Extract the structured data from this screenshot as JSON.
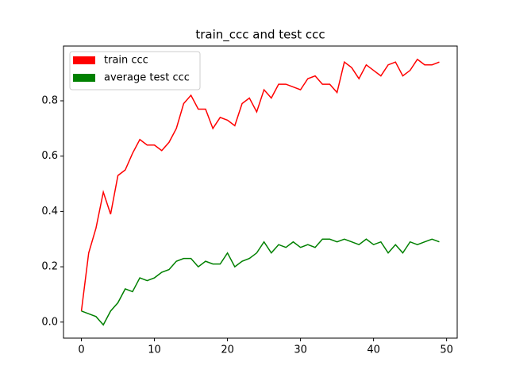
{
  "chart_data": {
    "type": "line",
    "title": "train_ccc and test ccc",
    "x": [
      0,
      1,
      2,
      3,
      4,
      5,
      6,
      7,
      8,
      9,
      10,
      11,
      12,
      13,
      14,
      15,
      16,
      17,
      18,
      19,
      20,
      21,
      22,
      23,
      24,
      25,
      26,
      27,
      28,
      29,
      30,
      31,
      32,
      33,
      34,
      35,
      36,
      37,
      38,
      39,
      40,
      41,
      42,
      43,
      44,
      45,
      46,
      47,
      48,
      49
    ],
    "series": [
      {
        "name": "train ccc",
        "color": "#ff0000",
        "values": [
          0.04,
          0.25,
          0.34,
          0.47,
          0.39,
          0.53,
          0.55,
          0.61,
          0.66,
          0.64,
          0.64,
          0.62,
          0.65,
          0.7,
          0.79,
          0.82,
          0.77,
          0.77,
          0.7,
          0.74,
          0.73,
          0.71,
          0.79,
          0.81,
          0.76,
          0.84,
          0.81,
          0.86,
          0.86,
          0.85,
          0.84,
          0.88,
          0.89,
          0.86,
          0.86,
          0.83,
          0.94,
          0.92,
          0.88,
          0.93,
          0.91,
          0.89,
          0.93,
          0.94,
          0.89,
          0.91,
          0.95,
          0.93,
          0.93,
          0.94
        ]
      },
      {
        "name": "average test ccc",
        "color": "#008000",
        "values": [
          0.04,
          0.03,
          0.02,
          -0.01,
          0.04,
          0.07,
          0.12,
          0.11,
          0.16,
          0.15,
          0.16,
          0.18,
          0.19,
          0.22,
          0.23,
          0.23,
          0.2,
          0.22,
          0.21,
          0.21,
          0.25,
          0.2,
          0.22,
          0.23,
          0.25,
          0.29,
          0.25,
          0.28,
          0.27,
          0.29,
          0.27,
          0.28,
          0.27,
          0.3,
          0.3,
          0.29,
          0.3,
          0.29,
          0.28,
          0.3,
          0.28,
          0.29,
          0.25,
          0.28,
          0.25,
          0.29,
          0.28,
          0.29,
          0.3,
          0.29
        ]
      }
    ],
    "xlim": [
      -2.45,
      51.45
    ],
    "xticks": [
      0,
      10,
      20,
      30,
      40,
      50
    ],
    "ylim": [
      -0.058,
      0.998
    ],
    "yticks": [
      {
        "value": 0,
        "label": "0.0"
      },
      {
        "value": 0.2,
        "label": "0.2"
      },
      {
        "value": 0.4,
        "label": "0.4"
      },
      {
        "value": 0.6,
        "label": "0.6"
      },
      {
        "value": 0.8,
        "label": "0.8"
      }
    ],
    "legend": "upper left"
  }
}
